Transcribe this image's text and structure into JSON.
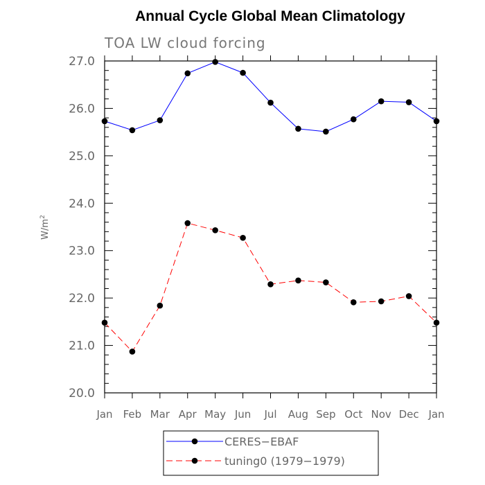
{
  "chart_data": {
    "type": "line",
    "title": "Annual Cycle Global Mean Climatology",
    "subtitle": "TOA LW cloud forcing",
    "ylabel_base": "W/m",
    "ylabel_sup": "2",
    "categories": [
      "Jan",
      "Feb",
      "Mar",
      "Apr",
      "May",
      "Jun",
      "Jul",
      "Aug",
      "Sep",
      "Oct",
      "Nov",
      "Dec",
      "Jan"
    ],
    "ylim": [
      20.0,
      27.0
    ],
    "yticks": [
      "20.0",
      "21.0",
      "22.0",
      "23.0",
      "24.0",
      "25.0",
      "26.0",
      "27.0"
    ],
    "grid": false,
    "legend_position": "bottom-center",
    "series": [
      {
        "name": "CERES−EBAF",
        "color": "#0000ff",
        "dash": "solid",
        "values": [
          25.73,
          25.54,
          25.75,
          26.74,
          26.98,
          26.75,
          26.12,
          25.57,
          25.51,
          25.77,
          26.15,
          26.13,
          25.73
        ]
      },
      {
        "name": "tuning0 (1979−1979)",
        "color": "#ff0000",
        "dash": "dashed",
        "values": [
          21.48,
          20.87,
          21.84,
          23.58,
          23.43,
          23.27,
          22.29,
          22.37,
          22.33,
          21.91,
          21.93,
          22.04,
          21.48
        ]
      }
    ]
  }
}
